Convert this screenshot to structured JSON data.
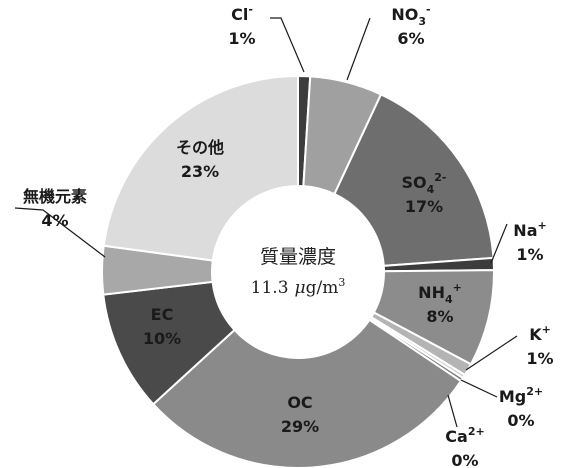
{
  "chart_data": {
    "type": "pie",
    "style": "donut",
    "center_label": {
      "title": "質量濃度",
      "value": "11.3",
      "unit_prefix": "μ",
      "unit_main": "g/m",
      "unit_exp": "3"
    },
    "slices": [
      {
        "id": "cl",
        "name": "Cl",
        "charge": "-",
        "value": 1,
        "label": "1%",
        "color": "#3c3c3c"
      },
      {
        "id": "no3",
        "name": "NO",
        "sub": "3",
        "charge": "-",
        "value": 6,
        "label": "6%",
        "color": "#a0a0a0"
      },
      {
        "id": "so4",
        "name": "SO",
        "sub": "4",
        "charge": "2-",
        "value": 17,
        "label": "17%",
        "color": "#6e6e6e"
      },
      {
        "id": "na",
        "name": "Na",
        "charge": "+",
        "value": 1,
        "label": "1%",
        "color": "#3c3c3c"
      },
      {
        "id": "nh4",
        "name": "NH",
        "sub": "4",
        "charge": "+",
        "value": 8,
        "label": "8%",
        "color": "#8c8c8c"
      },
      {
        "id": "k",
        "name": "K",
        "charge": "+",
        "value": 1,
        "label": "1%",
        "color": "#b4b4b4"
      },
      {
        "id": "mg",
        "name": "Mg",
        "charge": "2+",
        "value": 0.3,
        "label": "0%",
        "color": "#d2d2d2"
      },
      {
        "id": "ca",
        "name": "Ca",
        "charge": "2+",
        "value": 0.3,
        "label": "0%",
        "color": "#7a7a7a"
      },
      {
        "id": "oc",
        "name": "OC",
        "value": 29,
        "label": "29%",
        "color": "#8a8a8a"
      },
      {
        "id": "ec",
        "name": "EC",
        "value": 10,
        "label": "10%",
        "color": "#4a4a4a"
      },
      {
        "id": "inorg",
        "name": "無機元素",
        "value": 4,
        "label": "4%",
        "color": "#a8a8a8"
      },
      {
        "id": "other",
        "name": "その他",
        "value": 23,
        "label": "23%",
        "color": "#dcdcdc"
      }
    ]
  }
}
